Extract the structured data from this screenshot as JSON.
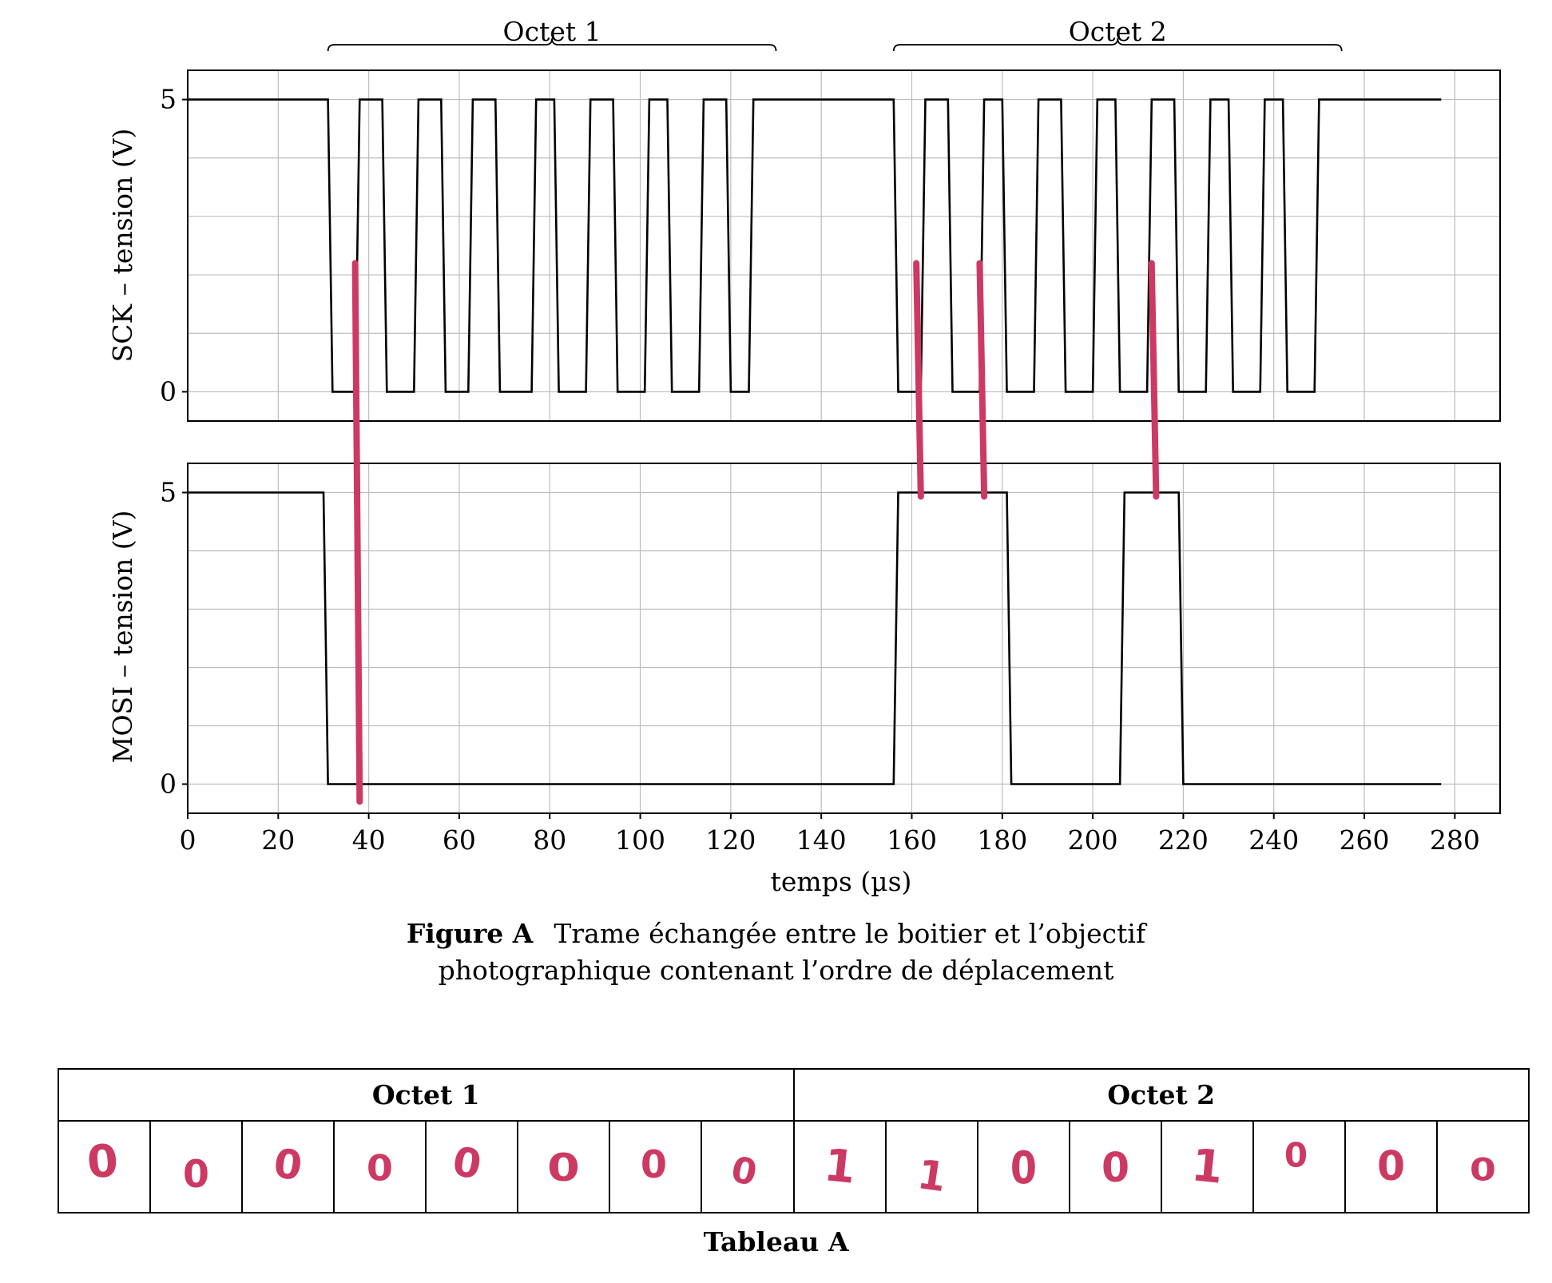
{
  "chart_data": {
    "type": "line",
    "title": "",
    "xlabel": "temps (µs)",
    "xlim": [
      0,
      290
    ],
    "x_ticks": [
      0,
      20,
      40,
      60,
      80,
      100,
      120,
      140,
      160,
      180,
      200,
      220,
      240,
      260,
      280
    ],
    "grid": true,
    "panels": [
      {
        "ylabel": "SCK – tension (V)",
        "ylim": [
          -0.5,
          5.5
        ],
        "y_ticks": [
          0,
          5
        ],
        "series": [
          {
            "x": [
              0,
              31,
              32,
              37,
              38,
              43,
              44,
              50,
              51,
              56,
              57,
              62,
              63,
              68,
              69,
              76,
              77,
              81,
              82,
              88,
              89,
              94,
              95,
              101,
              102,
              106,
              107,
              113,
              114,
              119,
              120,
              124,
              125,
              156,
              157,
              162,
              163,
              168,
              169,
              175,
              176,
              180,
              181,
              187,
              188,
              193,
              194,
              200,
              201,
              205,
              206,
              212,
              213,
              218,
              219,
              225,
              226,
              230,
              231,
              237,
              238,
              242,
              243,
              249,
              250,
              277
            ],
            "y": [
              5,
              5,
              0,
              0,
              5,
              5,
              0,
              0,
              5,
              5,
              0,
              0,
              5,
              5,
              0,
              0,
              5,
              5,
              0,
              0,
              5,
              5,
              0,
              0,
              5,
              5,
              0,
              0,
              5,
              5,
              0,
              0,
              5,
              5,
              0,
              0,
              5,
              5,
              0,
              0,
              5,
              5,
              0,
              0,
              5,
              5,
              0,
              0,
              5,
              5,
              0,
              0,
              5,
              5,
              0,
              0,
              5,
              5,
              0,
              0,
              5,
              5,
              0,
              0,
              5,
              5
            ]
          }
        ]
      },
      {
        "ylabel": "MOSI – tension (V)",
        "ylim": [
          -0.5,
          5.5
        ],
        "y_ticks": [
          0,
          5
        ],
        "series": [
          {
            "x": [
              0,
              30,
              31,
              156,
              157,
              181,
              182,
              206,
              207,
              219,
              220,
              277
            ],
            "y": [
              5,
              5,
              0,
              0,
              5,
              5,
              0,
              0,
              5,
              5,
              0,
              0
            ]
          }
        ]
      }
    ],
    "annotations": [
      {
        "text": "Octet 1",
        "x_range": [
          31,
          130
        ]
      },
      {
        "text": "Octet 2",
        "x_range": [
          156,
          255
        ]
      }
    ],
    "marker_lines": [
      {
        "x_top": 37,
        "x_bottom": 38,
        "from": "SCK",
        "to": "MOSI 0 V"
      },
      {
        "x_top": 161,
        "x_bottom": 162,
        "from": "SCK",
        "to": "MOSI 5 V"
      },
      {
        "x_top": 175,
        "x_bottom": 176,
        "from": "SCK",
        "to": "MOSI 5 V"
      },
      {
        "x_top": 213,
        "x_bottom": 214,
        "from": "SCK",
        "to": "MOSI 5 V"
      }
    ],
    "colors": {
      "line": "#000000",
      "grid": "#bdbdbd",
      "marker": "#cc3a63"
    }
  },
  "caption": {
    "label": "Figure A",
    "line1": "Trame échangée entre le boitier et l’objectif",
    "line2": "photographique contenant l’ordre de déplacement"
  },
  "table": {
    "headers": [
      "Octet 1",
      "Octet 2"
    ],
    "bits": [
      "0",
      "0",
      "0",
      "0",
      "0",
      "0",
      "0",
      "0",
      "1",
      "1",
      "0",
      "0",
      "1",
      "0",
      "0",
      "0"
    ],
    "title": "Tableau A"
  }
}
